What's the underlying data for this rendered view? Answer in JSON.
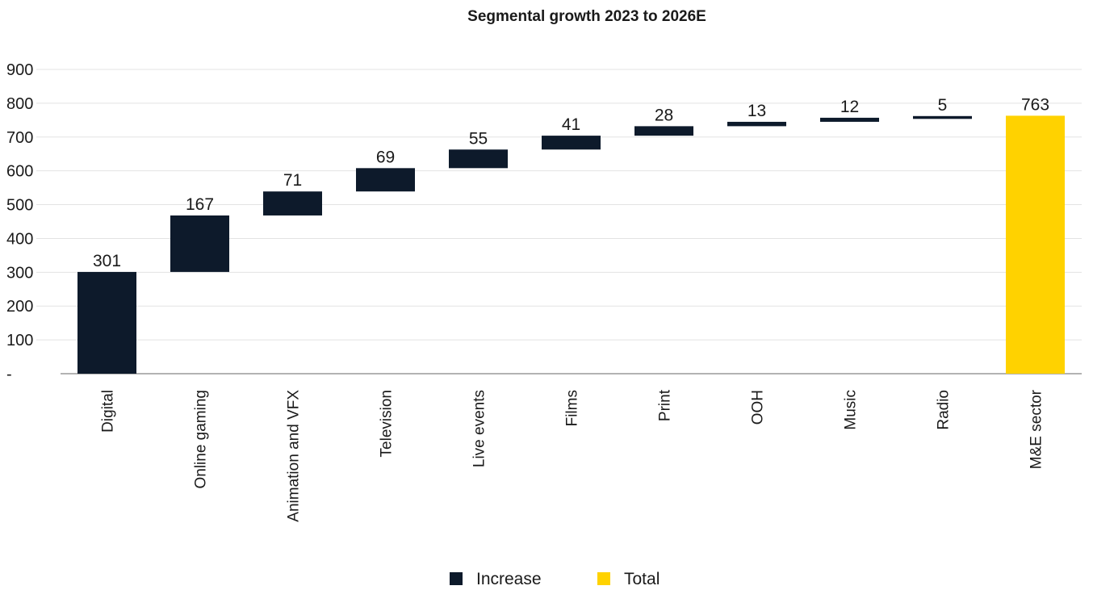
{
  "chart_data": {
    "type": "waterfall",
    "title": "Segmental growth 2023 to 2026E",
    "xlabel": "",
    "ylabel": "",
    "ylim": [
      0,
      900
    ],
    "yticks": [
      0,
      100,
      200,
      300,
      400,
      500,
      600,
      700,
      800,
      900
    ],
    "ytick_labels": [
      "-",
      "100",
      "200",
      "300",
      "400",
      "500",
      "600",
      "700",
      "800",
      "900"
    ],
    "grid": true,
    "legend_position": "bottom",
    "categories": [
      "Digital",
      "Online gaming",
      "Animation and VFX",
      "Television",
      "Live events",
      "Films",
      "Print",
      "OOH",
      "Music",
      "Radio",
      "M&E sector"
    ],
    "values": [
      301,
      167,
      71,
      69,
      55,
      41,
      28,
      13,
      12,
      5,
      763
    ],
    "kinds": [
      "increase",
      "increase",
      "increase",
      "increase",
      "increase",
      "increase",
      "increase",
      "increase",
      "increase",
      "increase",
      "total"
    ],
    "labels": [
      "301",
      "167",
      "71",
      "69",
      "55",
      "41",
      "28",
      "13",
      "12",
      "5",
      "763"
    ],
    "series": [
      {
        "name": "Increase",
        "color": "#0d1a2b"
      },
      {
        "name": "Total",
        "color": "#ffd200"
      }
    ]
  }
}
